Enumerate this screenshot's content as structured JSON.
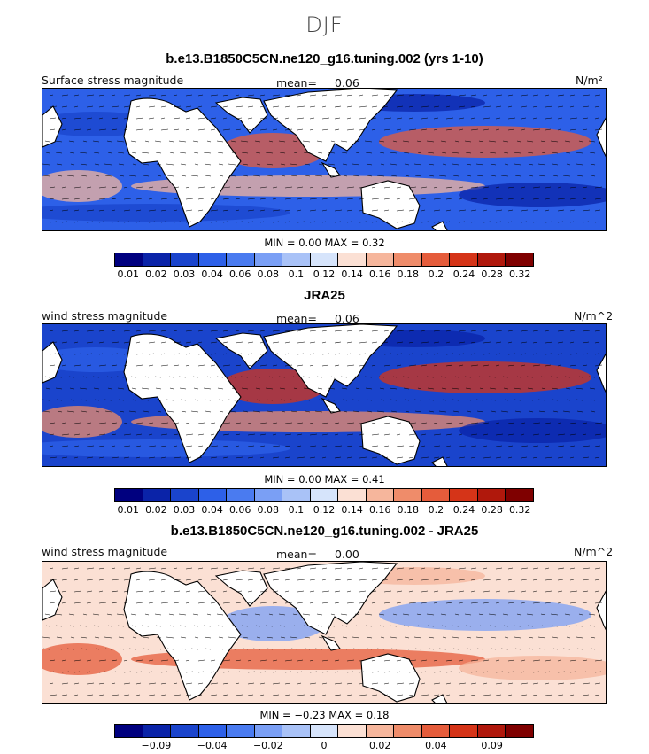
{
  "season": "DJF",
  "colors": [
    "#00007f",
    "#0a23a8",
    "#1a44cc",
    "#2d60e8",
    "#4a7bf0",
    "#7a9ff5",
    "#a9c2f7",
    "#d6e4fb",
    "#fbe0d4",
    "#f6b69c",
    "#ef8c6a",
    "#e55c3b",
    "#d53418",
    "#b0180c",
    "#7f0000"
  ],
  "panels": [
    {
      "title": "b.e13.B1850C5CN.ne120_g16.tuning.002 (yrs 1-10)",
      "field_label": "Surface stress magnitude",
      "mean_label": "mean=",
      "mean_value": "0.06",
      "units": "N/m²",
      "min_label": "MIN =",
      "min_value": "0.00",
      "max_label": "MAX =",
      "max_value": "0.32",
      "ticks": [
        "0.01",
        "0.02",
        "0.03",
        "0.04",
        "0.06",
        "0.08",
        "0.1",
        "0.12",
        "0.14",
        "0.16",
        "0.18",
        "0.2",
        "0.24",
        "0.28",
        "0.32"
      ]
    },
    {
      "title": "JRA25",
      "field_label": "wind stress magnitude",
      "mean_label": "mean=",
      "mean_value": "0.06",
      "units": "N/m^2",
      "min_label": "MIN =",
      "min_value": "0.00",
      "max_label": "MAX =",
      "max_value": "0.41",
      "ticks": [
        "0.01",
        "0.02",
        "0.03",
        "0.04",
        "0.06",
        "0.08",
        "0.1",
        "0.12",
        "0.14",
        "0.16",
        "0.18",
        "0.2",
        "0.24",
        "0.28",
        "0.32"
      ]
    },
    {
      "title": "b.e13.B1850C5CN.ne120_g16.tuning.002 - JRA25",
      "field_label": "wind stress magnitude",
      "mean_label": "mean=",
      "mean_value": "0.00",
      "units": "N/m^2",
      "min_label": "MIN =",
      "min_value": "−0.23",
      "max_label": "MAX =",
      "max_value": "0.18",
      "ticks": [
        "",
        "−0.09",
        "",
        "−0.04",
        "",
        "−0.02",
        "",
        "0",
        "",
        "0.02",
        "",
        "0.04",
        "",
        "0.09",
        ""
      ]
    }
  ]
}
